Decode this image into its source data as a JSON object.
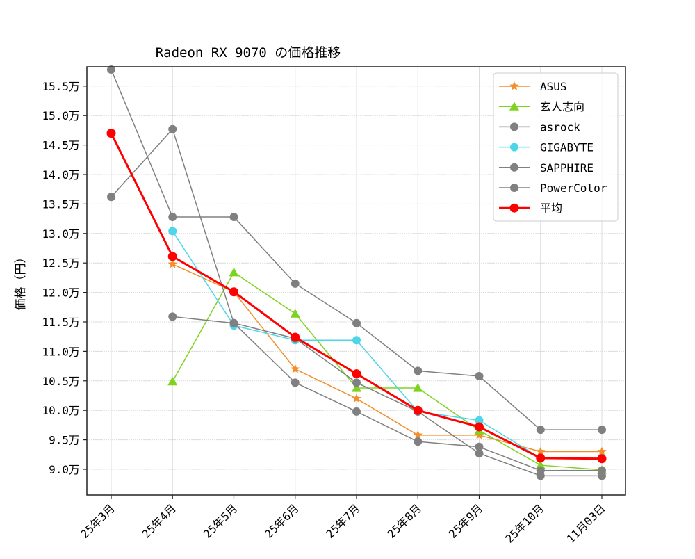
{
  "chart_data": {
    "type": "line",
    "title": "Radeon RX 9070 の価格推移",
    "xlabel": "",
    "ylabel": "価格（円）",
    "categories": [
      "25年3月",
      "25年4月",
      "25年5月",
      "25年6月",
      "25年7月",
      "25年8月",
      "25年9月",
      "25年10月",
      "11月03日"
    ],
    "ylim": [
      85700,
      158500
    ],
    "yticks": [
      90000,
      95000,
      100000,
      105000,
      110000,
      115000,
      120000,
      125000,
      130000,
      135000,
      140000,
      145000,
      150000,
      155000
    ],
    "ytick_labels": [
      "9.0万",
      "9.5万",
      "10.0万",
      "10.5万",
      "11.0万",
      "11.5万",
      "12.0万",
      "12.5万",
      "13.0万",
      "13.5万",
      "14.0万",
      "14.5万",
      "15.0万",
      "15.5万"
    ],
    "grid": true,
    "legend_position": "upper right",
    "series": [
      {
        "name": "ASUS",
        "color": "#f28e2b",
        "marker": "star",
        "width": 1.5,
        "values": [
          null,
          124800,
          120100,
          107000,
          102000,
          95800,
          95800,
          93000,
          93000
        ]
      },
      {
        "name": "玄人志向",
        "color": "#7ed321",
        "marker": "triangle",
        "width": 1.5,
        "values": [
          null,
          104900,
          123400,
          116400,
          103800,
          103800,
          96600,
          90700,
          89900
        ]
      },
      {
        "name": "asrock",
        "color": "#808080",
        "marker": "circle",
        "width": 1.5,
        "values": [
          157800,
          132800,
          132800,
          121500,
          114800,
          106700,
          105800,
          96700,
          96700
        ]
      },
      {
        "name": "GIGABYTE",
        "color": "#4dd6e8",
        "marker": "circle",
        "width": 1.5,
        "values": [
          null,
          130400,
          114400,
          111900,
          111900,
          99800,
          98300,
          91900,
          91900
        ]
      },
      {
        "name": "SAPPHIRE",
        "color": "#808080",
        "marker": "circle",
        "width": 1.5,
        "values": [
          136200,
          147700,
          114800,
          104700,
          99800,
          94700,
          93800,
          89800,
          89800
        ]
      },
      {
        "name": "PowerColor",
        "color": "#808080",
        "marker": "circle",
        "width": 1.5,
        "values": [
          null,
          115900,
          114800,
          112200,
          104700,
          99800,
          92700,
          88900,
          88900
        ]
      },
      {
        "name": "平均",
        "color": "#ff0000",
        "marker": "circle",
        "width": 3,
        "values": [
          147000,
          126100,
          120100,
          112400,
          106200,
          100000,
          97200,
          91900,
          91800
        ]
      }
    ]
  }
}
